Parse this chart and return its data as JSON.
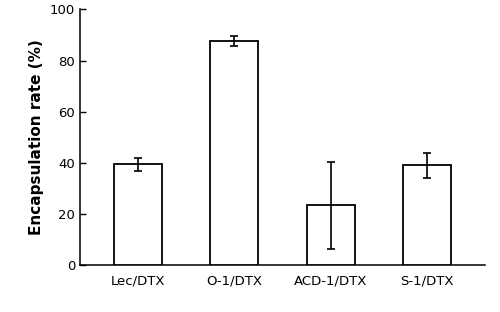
{
  "categories": [
    "Lec/DTX",
    "O-1/DTX",
    "ACD-1/DTX",
    "S-1/DTX"
  ],
  "values": [
    39.5,
    87.5,
    23.5,
    39.0
  ],
  "errors": [
    2.5,
    2.0,
    17.0,
    5.0
  ],
  "bar_color": "#ffffff",
  "bar_edgecolor": "#000000",
  "bar_linewidth": 1.3,
  "bar_width": 0.5,
  "ylabel": "Encapsulation rate (%)",
  "ylim": [
    0,
    100
  ],
  "yticks": [
    0,
    20,
    40,
    60,
    80,
    100
  ],
  "error_capsize": 3,
  "error_linewidth": 1.2,
  "error_color": "#000000",
  "ylabel_fontsize": 11,
  "tick_fontsize": 9.5,
  "xtick_fontsize": 9.5,
  "background_color": "#ffffff"
}
